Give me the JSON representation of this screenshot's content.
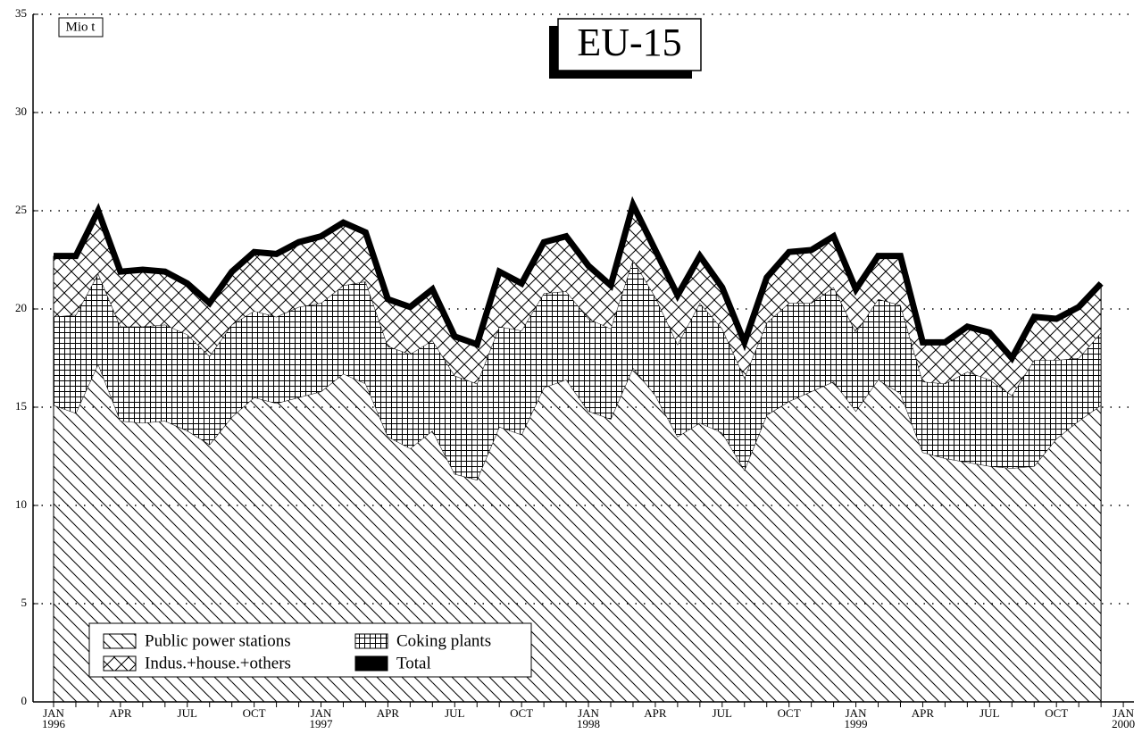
{
  "chart_data": {
    "type": "stacked_area",
    "title": "EU-15",
    "y_axis_label": "Mio t",
    "ylim": [
      0,
      35
    ],
    "yticks": [
      0,
      5,
      10,
      15,
      20,
      25,
      30,
      35
    ],
    "grid": true,
    "legend_position": "lower left",
    "categories": [
      "JAN\n1996",
      null,
      null,
      "APR",
      null,
      null,
      "JUL",
      null,
      null,
      "OCT",
      null,
      null,
      "JAN\n1997",
      null,
      null,
      "APR",
      null,
      null,
      "JUL",
      null,
      null,
      "OCT",
      null,
      null,
      "JAN\n1998",
      null,
      null,
      "APR",
      null,
      null,
      "JUL",
      null,
      null,
      "OCT",
      null,
      null,
      "JAN\n1999",
      null,
      null,
      "APR",
      null,
      null,
      "JUL",
      null,
      null,
      "OCT",
      null,
      null,
      "JAN\n2000"
    ],
    "series": [
      {
        "name": "Public power stations",
        "pattern": "diagonal",
        "color": "#000000",
        "values": [
          15.1,
          14.7,
          17.2,
          14.3,
          14.2,
          14.3,
          13.8,
          13.1,
          14.5,
          15.5,
          15.2,
          15.5,
          15.8,
          16.7,
          16.2,
          13.5,
          12.9,
          13.8,
          11.6,
          11.3,
          14.0,
          13.6,
          16.0,
          16.4,
          14.8,
          14.4,
          17.0,
          15.6,
          13.5,
          14.2,
          13.7,
          11.8,
          14.6,
          15.3,
          15.8,
          16.3,
          14.8,
          16.4,
          15.7,
          12.7,
          12.4,
          12.2,
          12.0,
          11.9,
          12.0,
          13.4,
          14.3,
          15.1,
          null
        ]
      },
      {
        "name": "Coking plants",
        "pattern": "grid",
        "color": "#000000",
        "values": [
          4.5,
          5.0,
          4.6,
          4.8,
          4.9,
          4.9,
          4.9,
          4.5,
          4.7,
          4.4,
          4.4,
          4.6,
          4.5,
          4.5,
          5.2,
          4.6,
          4.8,
          4.6,
          5.0,
          4.9,
          5.1,
          5.3,
          4.8,
          4.5,
          4.7,
          4.6,
          5.5,
          5.0,
          4.7,
          6.1,
          5.3,
          4.7,
          4.7,
          5.0,
          4.5,
          4.8,
          4.0,
          4.1,
          4.5,
          3.6,
          3.8,
          4.6,
          4.4,
          3.7,
          5.4,
          4.0,
          3.2,
          3.7,
          null
        ]
      },
      {
        "name": "Indus.+house.+others",
        "pattern": "crosshatch",
        "color": "#000000",
        "values": [
          3.1,
          3.0,
          3.2,
          2.8,
          2.9,
          2.7,
          2.6,
          2.7,
          2.7,
          3.0,
          3.2,
          3.3,
          3.4,
          3.2,
          2.5,
          2.4,
          2.4,
          2.6,
          2.0,
          2.0,
          2.8,
          2.4,
          2.6,
          2.8,
          2.7,
          2.2,
          2.8,
          2.4,
          2.5,
          2.4,
          2.1,
          1.8,
          2.3,
          2.6,
          2.7,
          2.6,
          2.2,
          2.2,
          2.5,
          2.0,
          2.1,
          2.3,
          2.4,
          1.9,
          2.2,
          2.1,
          2.6,
          2.5,
          null
        ]
      },
      {
        "name": "Total",
        "pattern": "line",
        "color": "#000000",
        "values": [
          22.7,
          22.7,
          25.0,
          21.9,
          22.0,
          21.9,
          21.3,
          20.3,
          21.9,
          22.9,
          22.8,
          23.4,
          23.7,
          24.4,
          23.9,
          20.5,
          20.1,
          21.0,
          18.6,
          18.2,
          21.9,
          21.3,
          23.4,
          23.7,
          22.2,
          21.2,
          25.3,
          23.0,
          20.7,
          22.7,
          21.1,
          18.3,
          21.6,
          22.9,
          23.0,
          23.7,
          21.0,
          22.7,
          22.7,
          18.3,
          18.3,
          19.1,
          18.8,
          17.5,
          19.6,
          19.5,
          20.1,
          21.3,
          null
        ]
      }
    ]
  }
}
